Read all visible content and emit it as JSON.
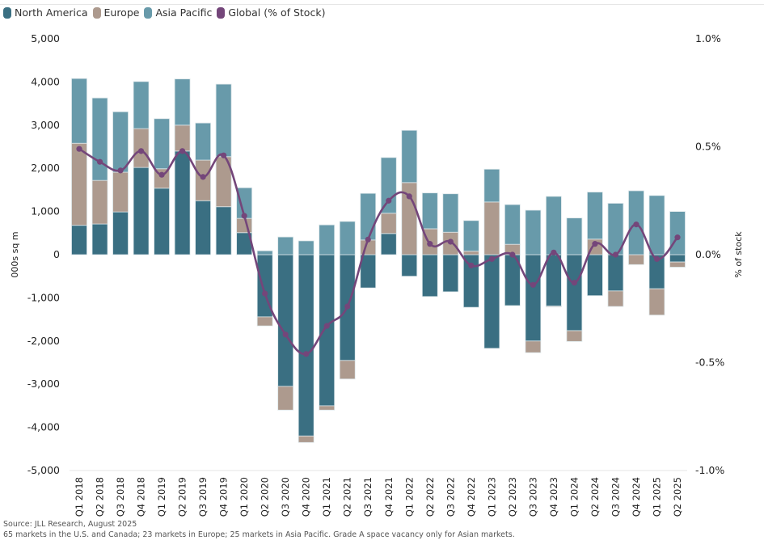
{
  "legend": [
    {
      "label": "North America",
      "color": "#3a6f82",
      "icon": "rounded-square-swatch"
    },
    {
      "label": "Europe",
      "color": "#ad9a8e",
      "icon": "rounded-square-swatch"
    },
    {
      "label": "Asia Pacific",
      "color": "#689aaa",
      "icon": "rounded-square-swatch"
    },
    {
      "label": "Global (% of Stock)",
      "color": "#74467a",
      "icon": "rounded-square-swatch"
    }
  ],
  "footer": {
    "source": "Source: JLL Research, August 2025",
    "note": "65 markets in the U.S. and Canada; 23 markets in Europe; 25 markets in Asia Pacific. Grade A space vacancy only for Asian markets."
  },
  "chart_data": {
    "type": "bar",
    "stacked": true,
    "title": "",
    "xlabel": "",
    "ylabel": "000s sq m",
    "y2label": "% of stock",
    "ylim": [
      -5000,
      5000
    ],
    "y2lim": [
      -1.0,
      1.0
    ],
    "yticks": [
      "5,000",
      "4,000",
      "3,000",
      "2,000",
      "1,000",
      "0",
      "-1,000",
      "-2,000",
      "-3,000",
      "-4,000",
      "-5,000"
    ],
    "ytick_values": [
      5000,
      4000,
      3000,
      2000,
      1000,
      0,
      -1000,
      -2000,
      -3000,
      -4000,
      -5000
    ],
    "y2ticks": [
      "1.0%",
      "0.5%",
      "0.0%",
      "-0.5%",
      "-1.0%"
    ],
    "y2tick_values": [
      1.0,
      0.5,
      0.0,
      -0.5,
      -1.0
    ],
    "grid": false,
    "legend_position": "top-left",
    "categories": [
      "Q1 2018",
      "Q2 2018",
      "Q3 2018",
      "Q4 2018",
      "Q1 2019",
      "Q2 2019",
      "Q3 2019",
      "Q4 2019",
      "Q1 2020",
      "Q2 2020",
      "Q3 2020",
      "Q4 2020",
      "Q1 2021",
      "Q2 2021",
      "Q3 2021",
      "Q4 2021",
      "Q1 2022",
      "Q2 2022",
      "Q3 2022",
      "Q4 2022",
      "Q1 2023",
      "Q2 2023",
      "Q3 2023",
      "Q4 2023",
      "Q1 2024",
      "Q2 2024",
      "Q3 2024",
      "Q4 2024",
      "Q1 2025",
      "Q2 2025"
    ],
    "series": [
      {
        "name": "North America",
        "type": "bar",
        "axis": "left",
        "color": "#3a6f82",
        "values": [
          680,
          710,
          990,
          2020,
          1540,
          2400,
          1250,
          1110,
          510,
          -1440,
          -3050,
          -4200,
          -3500,
          -2450,
          -770,
          490,
          -500,
          -970,
          -860,
          -1220,
          -2170,
          -1180,
          -2000,
          -1190,
          -1760,
          -950,
          -840,
          0,
          -790,
          -170
        ]
      },
      {
        "name": "Europe",
        "type": "bar",
        "axis": "left",
        "color": "#ad9a8e",
        "values": [
          1900,
          1010,
          920,
          900,
          450,
          600,
          940,
          1160,
          330,
          -210,
          -550,
          -150,
          -100,
          -430,
          340,
          470,
          1670,
          600,
          520,
          80,
          1220,
          240,
          -270,
          -20,
          -250,
          360,
          -360,
          -230,
          -610,
          -120
        ]
      },
      {
        "name": "Asia Pacific",
        "type": "bar",
        "axis": "left",
        "color": "#689aaa",
        "values": [
          1500,
          1910,
          1400,
          1090,
          1160,
          1070,
          860,
          1680,
          710,
          90,
          410,
          320,
          690,
          770,
          1080,
          1290,
          1210,
          830,
          890,
          710,
          760,
          920,
          1030,
          1350,
          850,
          1090,
          1190,
          1480,
          1370,
          1000
        ]
      },
      {
        "name": "Global (% of Stock)",
        "type": "line",
        "axis": "right",
        "color": "#74467a",
        "values": [
          0.49,
          0.43,
          0.39,
          0.48,
          0.37,
          0.48,
          0.36,
          0.46,
          0.18,
          -0.18,
          -0.37,
          -0.46,
          -0.33,
          -0.24,
          0.07,
          0.25,
          0.27,
          0.05,
          0.06,
          -0.05,
          -0.02,
          0.0,
          -0.14,
          0.01,
          -0.13,
          0.05,
          0.0,
          0.14,
          -0.02,
          0.08
        ]
      }
    ]
  }
}
